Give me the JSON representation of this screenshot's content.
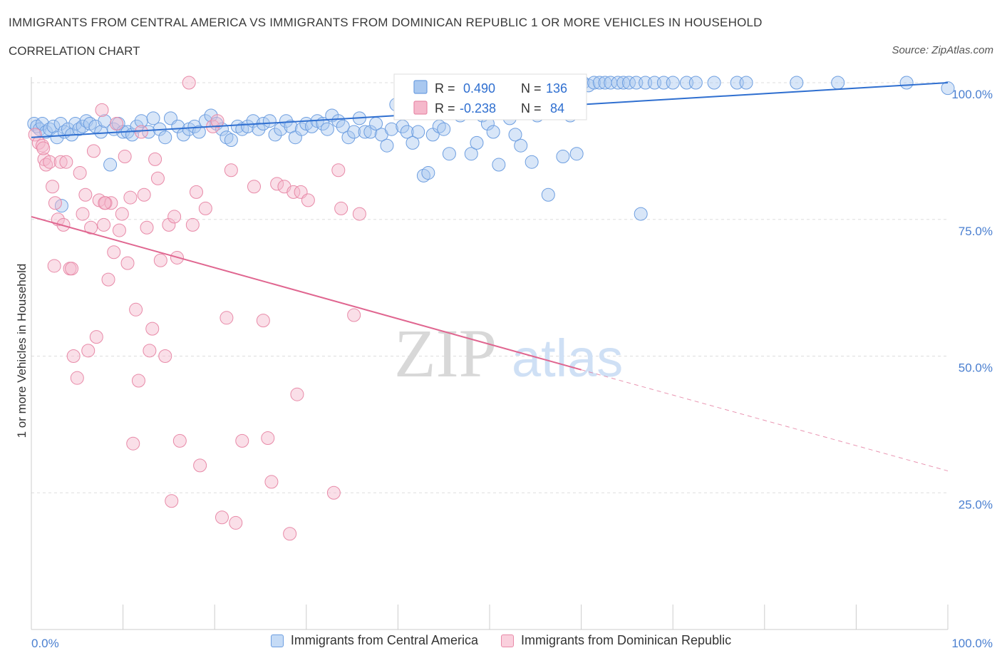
{
  "header": {
    "title": "IMMIGRANTS FROM CENTRAL AMERICA VS IMMIGRANTS FROM DOMINICAN REPUBLIC 1 OR MORE VEHICLES IN HOUSEHOLD",
    "subtitle": "CORRELATION CHART",
    "source": "Source: ZipAtlas.com"
  },
  "watermark": {
    "zip": "ZIP",
    "atlas": "atlas"
  },
  "legend_box": {
    "blue": {
      "r_label": "R =",
      "r_value": "0.490",
      "n_label": "N =",
      "n_value": "136"
    },
    "pink": {
      "r_label": "R =",
      "r_value": "-0.238",
      "n_label": "N =",
      "n_value": "84"
    }
  },
  "colors": {
    "blue_fill": "#a9c8f0",
    "blue_stroke": "#6d9ee0",
    "blue_line": "#2f6fd0",
    "pink_fill": "#f5b8cb",
    "pink_stroke": "#e88aa8",
    "pink_line": "#e06690",
    "grid": "#dddddd",
    "axis_text": "#4a7fd0"
  },
  "chart_data": {
    "type": "scatter",
    "title": "IMMIGRANTS FROM CENTRAL AMERICA VS IMMIGRANTS FROM DOMINICAN REPUBLIC 1 OR MORE VEHICLES IN HOUSEHOLD",
    "xlabel": "",
    "ylabel": "1 or more Vehicles in Household",
    "xlim": [
      0,
      100
    ],
    "ylim": [
      0,
      100
    ],
    "x_tick_labels": [
      "0.0%",
      "100.0%"
    ],
    "y_tick_labels": [
      "100.0%",
      "75.0%",
      "50.0%",
      "25.0%"
    ],
    "y_ticks": [
      100,
      75,
      50,
      25
    ],
    "grid": true,
    "legend_placement": "bottom",
    "series": [
      {
        "name": "Immigrants from Central America",
        "color": "#a9c8f0",
        "trend": {
          "x": [
            0,
            100
          ],
          "y": [
            90.0,
            100.0
          ],
          "style": "solid"
        },
        "points": [
          [
            0.3,
            92.5
          ],
          [
            0.6,
            92.0
          ],
          [
            0.9,
            91.5
          ],
          [
            1.2,
            92.5
          ],
          [
            1.6,
            91.0
          ],
          [
            2.0,
            91.5
          ],
          [
            2.4,
            92.0
          ],
          [
            2.8,
            90.0
          ],
          [
            3.2,
            92.5
          ],
          [
            3.6,
            91.0
          ],
          [
            4.0,
            91.5
          ],
          [
            4.4,
            90.5
          ],
          [
            4.8,
            92.5
          ],
          [
            5.2,
            91.5
          ],
          [
            5.6,
            92.0
          ],
          [
            6.0,
            93.0
          ],
          [
            6.4,
            92.5
          ],
          [
            7.0,
            92.0
          ],
          [
            7.6,
            91.0
          ],
          [
            8.0,
            93.0
          ],
          [
            8.6,
            85.0
          ],
          [
            9.0,
            91.5
          ],
          [
            9.5,
            92.5
          ],
          [
            10.0,
            91.0
          ],
          [
            10.5,
            91.0
          ],
          [
            11.0,
            90.5
          ],
          [
            11.5,
            92.0
          ],
          [
            12.0,
            93.0
          ],
          [
            12.8,
            91.0
          ],
          [
            13.3,
            93.5
          ],
          [
            14.0,
            91.5
          ],
          [
            14.6,
            90.0
          ],
          [
            15.2,
            93.5
          ],
          [
            16.0,
            92.0
          ],
          [
            16.6,
            90.5
          ],
          [
            17.2,
            91.5
          ],
          [
            17.8,
            92.0
          ],
          [
            18.3,
            91.0
          ],
          [
            19.0,
            93.0
          ],
          [
            19.6,
            94.0
          ],
          [
            20.2,
            92.5
          ],
          [
            20.8,
            91.5
          ],
          [
            21.3,
            90.0
          ],
          [
            21.8,
            89.5
          ],
          [
            22.5,
            92.0
          ],
          [
            23.0,
            91.5
          ],
          [
            23.6,
            92.0
          ],
          [
            24.2,
            93.0
          ],
          [
            24.8,
            91.5
          ],
          [
            25.3,
            92.5
          ],
          [
            26.0,
            93.0
          ],
          [
            26.6,
            90.5
          ],
          [
            27.2,
            91.5
          ],
          [
            27.8,
            93.0
          ],
          [
            28.3,
            92.0
          ],
          [
            28.8,
            90.0
          ],
          [
            29.5,
            91.5
          ],
          [
            30.0,
            92.5
          ],
          [
            30.6,
            92.0
          ],
          [
            31.2,
            93.0
          ],
          [
            31.8,
            92.5
          ],
          [
            32.3,
            91.5
          ],
          [
            32.8,
            94.0
          ],
          [
            33.5,
            93.0
          ],
          [
            34.0,
            92.0
          ],
          [
            34.6,
            90.0
          ],
          [
            35.2,
            91.0
          ],
          [
            35.8,
            93.5
          ],
          [
            36.4,
            91.0
          ],
          [
            37.0,
            91.0
          ],
          [
            37.6,
            92.5
          ],
          [
            38.2,
            90.5
          ],
          [
            38.8,
            88.5
          ],
          [
            39.3,
            91.5
          ],
          [
            39.8,
            96.0
          ],
          [
            40.5,
            92.0
          ],
          [
            41.0,
            91.0
          ],
          [
            41.6,
            89.0
          ],
          [
            42.2,
            91.0
          ],
          [
            42.8,
            83.0
          ],
          [
            43.3,
            83.5
          ],
          [
            43.8,
            90.5
          ],
          [
            44.5,
            92.0
          ],
          [
            45.0,
            91.5
          ],
          [
            45.6,
            87.0
          ],
          [
            46.2,
            98.0
          ],
          [
            46.8,
            94.0
          ],
          [
            47.4,
            95.5
          ],
          [
            48.0,
            87.0
          ],
          [
            48.6,
            89.0
          ],
          [
            49.2,
            94.0
          ],
          [
            49.8,
            92.5
          ],
          [
            50.4,
            91.0
          ],
          [
            51.0,
            85.0
          ],
          [
            51.6,
            96.0
          ],
          [
            52.2,
            93.5
          ],
          [
            52.8,
            90.5
          ],
          [
            53.4,
            88.5
          ],
          [
            54.0,
            99.0
          ],
          [
            54.6,
            85.5
          ],
          [
            55.2,
            94.0
          ],
          [
            55.8,
            99.5
          ],
          [
            56.4,
            79.5
          ],
          [
            57.0,
            100.0
          ],
          [
            57.6,
            100.0
          ],
          [
            58.2,
            99.5
          ],
          [
            58.8,
            94.0
          ],
          [
            59.6,
            98.5
          ],
          [
            60.2,
            100.0
          ],
          [
            60.8,
            99.5
          ],
          [
            61.4,
            100.0
          ],
          [
            62.0,
            100.0
          ],
          [
            62.6,
            100.0
          ],
          [
            63.2,
            100.0
          ],
          [
            64.0,
            100.0
          ],
          [
            64.6,
            100.0
          ],
          [
            65.2,
            100.0
          ],
          [
            66.0,
            100.0
          ],
          [
            66.5,
            76.0
          ],
          [
            67.0,
            100.0
          ],
          [
            68.0,
            100.0
          ],
          [
            69.0,
            100.0
          ],
          [
            70.0,
            100.0
          ],
          [
            71.5,
            100.0
          ],
          [
            72.5,
            100.0
          ],
          [
            74.5,
            100.0
          ],
          [
            77.0,
            100.0
          ],
          [
            78.0,
            100.0
          ],
          [
            83.5,
            100.0
          ],
          [
            88.0,
            100.0
          ],
          [
            95.5,
            100.0
          ],
          [
            100.0,
            99.0
          ],
          [
            58.0,
            86.5
          ],
          [
            59.5,
            87.0
          ],
          [
            3.3,
            77.5
          ]
        ]
      },
      {
        "name": "Immigrants from Dominican Republic",
        "color": "#f5b8cb",
        "trend": {
          "x": [
            0,
            60
          ],
          "y": [
            75.5,
            47.5
          ],
          "style": "solid",
          "extension": {
            "x": [
              60,
              100
            ],
            "y": [
              47.5,
              29.0
            ],
            "style": "dashed"
          }
        },
        "points": [
          [
            0.4,
            90.5
          ],
          [
            0.8,
            89.0
          ],
          [
            1.2,
            88.5
          ],
          [
            1.4,
            86.0
          ],
          [
            1.6,
            85.0
          ],
          [
            2.0,
            85.5
          ],
          [
            2.3,
            81.0
          ],
          [
            2.6,
            78.0
          ],
          [
            2.9,
            75.0
          ],
          [
            3.2,
            85.5
          ],
          [
            3.5,
            74.0
          ],
          [
            3.8,
            85.5
          ],
          [
            4.2,
            66.0
          ],
          [
            4.4,
            66.0
          ],
          [
            4.6,
            50.0
          ],
          [
            5.0,
            46.0
          ],
          [
            5.3,
            83.5
          ],
          [
            5.6,
            76.0
          ],
          [
            5.9,
            79.5
          ],
          [
            6.2,
            51.0
          ],
          [
            6.5,
            73.5
          ],
          [
            6.8,
            87.5
          ],
          [
            7.1,
            53.5
          ],
          [
            7.4,
            78.5
          ],
          [
            7.7,
            95.0
          ],
          [
            7.9,
            74.0
          ],
          [
            8.1,
            78.0
          ],
          [
            8.4,
            64.0
          ],
          [
            8.7,
            78.0
          ],
          [
            9.0,
            69.0
          ],
          [
            9.3,
            92.5
          ],
          [
            9.6,
            73.0
          ],
          [
            9.9,
            76.0
          ],
          [
            10.2,
            86.5
          ],
          [
            10.5,
            67.0
          ],
          [
            10.8,
            79.0
          ],
          [
            11.1,
            34.0
          ],
          [
            11.4,
            58.5
          ],
          [
            11.7,
            45.5
          ],
          [
            12.0,
            91.0
          ],
          [
            12.3,
            79.5
          ],
          [
            12.6,
            73.5
          ],
          [
            12.9,
            51.0
          ],
          [
            13.2,
            55.0
          ],
          [
            13.5,
            86.0
          ],
          [
            13.8,
            82.5
          ],
          [
            14.1,
            67.5
          ],
          [
            14.6,
            50.0
          ],
          [
            15.0,
            74.0
          ],
          [
            15.3,
            23.5
          ],
          [
            15.6,
            75.5
          ],
          [
            15.9,
            68.0
          ],
          [
            16.2,
            34.5
          ],
          [
            17.2,
            100.0
          ],
          [
            17.6,
            74.0
          ],
          [
            18.0,
            80.0
          ],
          [
            18.4,
            30.0
          ],
          [
            19.0,
            77.0
          ],
          [
            19.8,
            92.0
          ],
          [
            20.3,
            93.0
          ],
          [
            20.8,
            20.5
          ],
          [
            21.3,
            57.0
          ],
          [
            21.8,
            84.0
          ],
          [
            22.3,
            19.5
          ],
          [
            23.0,
            34.5
          ],
          [
            24.3,
            81.0
          ],
          [
            25.3,
            56.5
          ],
          [
            25.8,
            35.0
          ],
          [
            26.2,
            27.0
          ],
          [
            26.8,
            81.5
          ],
          [
            27.6,
            81.0
          ],
          [
            28.2,
            17.5
          ],
          [
            28.6,
            80.0
          ],
          [
            29.0,
            43.0
          ],
          [
            29.4,
            80.0
          ],
          [
            30.2,
            78.5
          ],
          [
            33.0,
            25.0
          ],
          [
            33.5,
            84.0
          ],
          [
            33.8,
            77.0
          ],
          [
            35.2,
            57.5
          ],
          [
            35.8,
            76.0
          ],
          [
            8.0,
            78.0
          ],
          [
            2.5,
            66.5
          ],
          [
            1.3,
            88.0
          ]
        ]
      }
    ]
  },
  "bottom_legend": {
    "blue_label": "Immigrants from Central America",
    "pink_label": "Immigrants from Dominican Republic"
  },
  "axes": {
    "y_label": "1 or more Vehicles in Household",
    "x_min_label": "0.0%",
    "x_max_label": "100.0%"
  }
}
